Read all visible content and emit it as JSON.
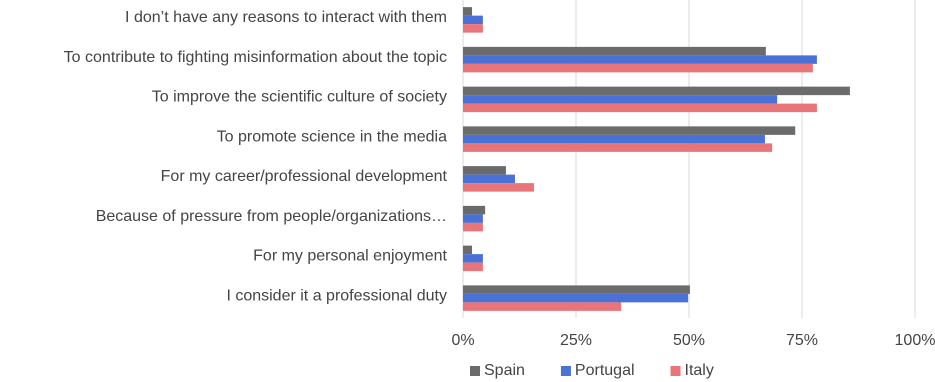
{
  "chart_data": {
    "type": "hbar",
    "categories": [
      "I don’t have any reasons to interact with them",
      "To contribute to fighting misinformation about the topic",
      "To improve the scientific culture of society",
      "To promote science in the media",
      "For my career/professional development",
      "Because of pressure from people/organizations…",
      "For my personal enjoyment",
      "I consider it a professional duty"
    ],
    "series": [
      {
        "name": "Spain",
        "color": "#6b6b6b",
        "values": [
          2,
          67,
          85.6,
          73.5,
          9.5,
          4.9,
          2,
          50.2
        ]
      },
      {
        "name": "Portugal",
        "color": "#4a72d6",
        "values": [
          4.4,
          78.3,
          69.5,
          66.8,
          11.5,
          4.4,
          4.4,
          49.8
        ]
      },
      {
        "name": "Italy",
        "color": "#e8757a",
        "values": [
          4.4,
          77.4,
          78.3,
          68.4,
          15.7,
          4.4,
          4.4,
          35
        ]
      }
    ],
    "xlim": [
      0,
      100
    ],
    "xticks": [
      {
        "value": 0,
        "label": "0%"
      },
      {
        "value": 25,
        "label": "25%"
      },
      {
        "value": 50,
        "label": "50%"
      },
      {
        "value": 75,
        "label": "75%"
      },
      {
        "value": 100,
        "label": "100%"
      }
    ],
    "grid": true,
    "legend": "bottom"
  }
}
